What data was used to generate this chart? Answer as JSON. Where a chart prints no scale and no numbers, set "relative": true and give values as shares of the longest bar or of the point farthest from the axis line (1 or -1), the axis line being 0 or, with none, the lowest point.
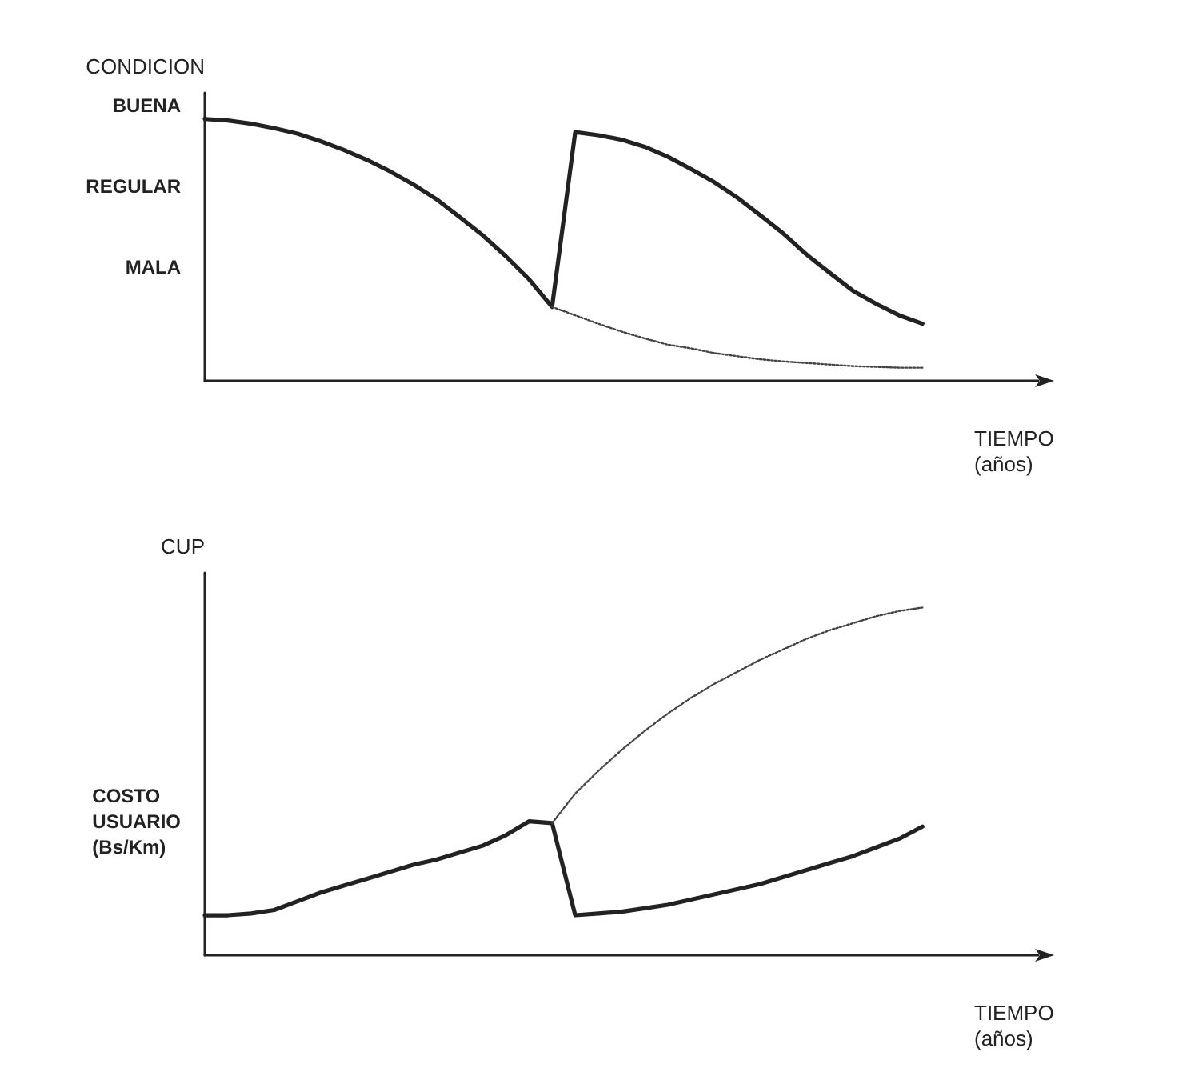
{
  "chart_data": [
    {
      "type": "line",
      "ylabel": "CONDICION",
      "xlabel": "TIEMPO\n(años)",
      "annotations": [
        "BUENA",
        "REGULAR",
        "MALA"
      ],
      "relative": true,
      "categories": [
        null,
        null,
        null,
        null,
        null,
        null,
        null,
        null,
        null,
        null,
        null,
        null,
        null,
        null,
        null,
        null,
        null,
        null,
        null,
        null,
        null,
        null,
        null,
        null,
        null,
        null,
        null,
        null,
        null,
        null,
        null,
        null,
        null,
        null,
        null,
        null,
        null
      ],
      "grid": false,
      "marker": "none",
      "series": [
        {
          "color": "#222222",
          "line_style": "solid",
          "values": [
            1,
            0.994,
            0.982,
            0.965,
            0.944,
            0.915,
            0.882,
            0.844,
            0.8,
            0.75,
            0.694,
            0.626,
            0.556,
            0.476,
            0.388,
            0.282,
            0.95,
            0.938,
            0.921,
            0.894,
            0.856,
            0.809,
            0.759,
            0.7,
            0.632,
            0.562,
            0.482,
            0.412,
            0.344,
            0.294,
            0.25,
            0.218,
            null,
            null,
            null,
            null,
            null
          ]
        },
        {
          "color": "#444444",
          "line_style": "dotted",
          "values": [
            null,
            null,
            null,
            null,
            null,
            null,
            null,
            null,
            null,
            null,
            null,
            null,
            null,
            null,
            null,
            0.282,
            0.25,
            0.218,
            0.188,
            0.162,
            0.138,
            0.124,
            0.106,
            0.094,
            0.082,
            0.074,
            0.068,
            0.062,
            0.056,
            0.053,
            0.05,
            0.05,
            null,
            null,
            null,
            null,
            null
          ]
        }
      ]
    },
    {
      "type": "line",
      "ylabel": "CUP",
      "xlabel": "TIEMPO\n(años)",
      "annotations": [
        "COSTO\nUSUARIO\n(Bs/Km)"
      ],
      "relative": true,
      "categories": [
        null,
        null,
        null,
        null,
        null,
        null,
        null,
        null,
        null,
        null,
        null,
        null,
        null,
        null,
        null,
        null,
        null,
        null,
        null,
        null,
        null,
        null,
        null,
        null,
        null,
        null,
        null,
        null,
        null,
        null,
        null,
        null,
        null,
        null,
        null,
        null,
        null
      ],
      "grid": false,
      "marker": "none",
      "series": [
        {
          "color": "#222222",
          "line_style": "solid",
          "values": [
            0.115,
            0.115,
            0.12,
            0.13,
            0.155,
            0.18,
            0.2,
            0.22,
            0.24,
            0.26,
            0.275,
            0.295,
            0.315,
            0.345,
            0.385,
            0.38,
            0.115,
            0.12,
            0.125,
            0.135,
            0.145,
            0.16,
            0.175,
            0.19,
            0.205,
            0.225,
            0.245,
            0.265,
            0.285,
            0.31,
            0.335,
            0.37,
            null,
            null,
            null,
            null,
            null
          ]
        },
        {
          "color": "#444444",
          "line_style": "dotted",
          "values": [
            null,
            null,
            null,
            null,
            null,
            null,
            null,
            null,
            null,
            null,
            null,
            null,
            null,
            null,
            null,
            0.38,
            0.465,
            0.53,
            0.59,
            0.645,
            0.695,
            0.74,
            0.78,
            0.815,
            0.85,
            0.88,
            0.91,
            0.935,
            0.955,
            0.975,
            0.99,
            1,
            null,
            null,
            null,
            null,
            null
          ]
        }
      ]
    }
  ]
}
